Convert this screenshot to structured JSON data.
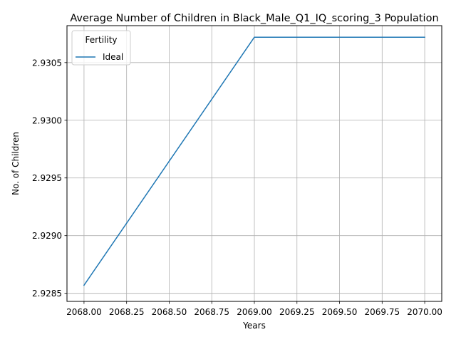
{
  "chart_data": {
    "type": "line",
    "title": "Average Number of Children in Black_Male_Q1_IQ_scoring_3 Population",
    "xlabel": "Years",
    "ylabel": "No. of Children",
    "legend_title": "Fertility",
    "legend_position": "upper-left",
    "grid": true,
    "xlim": [
      2067.9,
      2070.1
    ],
    "ylim": [
      2.92843,
      2.93082
    ],
    "xticks": [
      2068.0,
      2068.25,
      2068.5,
      2068.75,
      2069.0,
      2069.25,
      2069.5,
      2069.75,
      2070.0
    ],
    "xtick_labels": [
      "2068.00",
      "2068.25",
      "2068.50",
      "2068.75",
      "2069.00",
      "2069.25",
      "2069.50",
      "2069.75",
      "2070.00"
    ],
    "yticks": [
      2.9285,
      2.929,
      2.9295,
      2.93,
      2.9305
    ],
    "ytick_labels": [
      "2.9285",
      "2.9290",
      "2.9295",
      "2.9300",
      "2.9305"
    ],
    "series": [
      {
        "name": "Ideal",
        "color": "#1f77b4",
        "x": [
          2068,
          2069,
          2070
        ],
        "y": [
          2.92857,
          2.93072,
          2.93072
        ]
      }
    ]
  }
}
